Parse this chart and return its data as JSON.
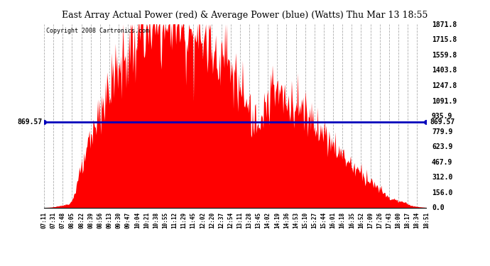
{
  "title": "East Array Actual Power (red) & Average Power (blue) (Watts) Thu Mar 13 18:55",
  "copyright": "Copyright 2008 Cartronics.com",
  "avg_power": 869.57,
  "y_max": 1871.8,
  "y_min": 0.0,
  "y_ticks": [
    0.0,
    156.0,
    312.0,
    467.9,
    623.9,
    779.9,
    935.9,
    1091.9,
    1247.8,
    1403.8,
    1559.8,
    1715.8,
    1871.8
  ],
  "bar_color": "#FF0000",
  "line_color": "#0000BB",
  "bg_color": "#FFFFFF",
  "grid_color": "#999999",
  "x_labels": [
    "07:11",
    "07:31",
    "07:48",
    "08:05",
    "08:22",
    "08:39",
    "08:56",
    "09:13",
    "09:30",
    "09:47",
    "10:04",
    "10:21",
    "10:38",
    "10:55",
    "11:12",
    "11:29",
    "11:45",
    "12:02",
    "12:20",
    "12:37",
    "12:54",
    "13:11",
    "13:28",
    "13:45",
    "14:02",
    "14:19",
    "14:36",
    "14:53",
    "15:10",
    "15:27",
    "15:44",
    "16:01",
    "16:18",
    "16:35",
    "16:52",
    "17:09",
    "17:26",
    "17:43",
    "18:00",
    "18:17",
    "18:34",
    "18:51"
  ],
  "n_points": 500
}
